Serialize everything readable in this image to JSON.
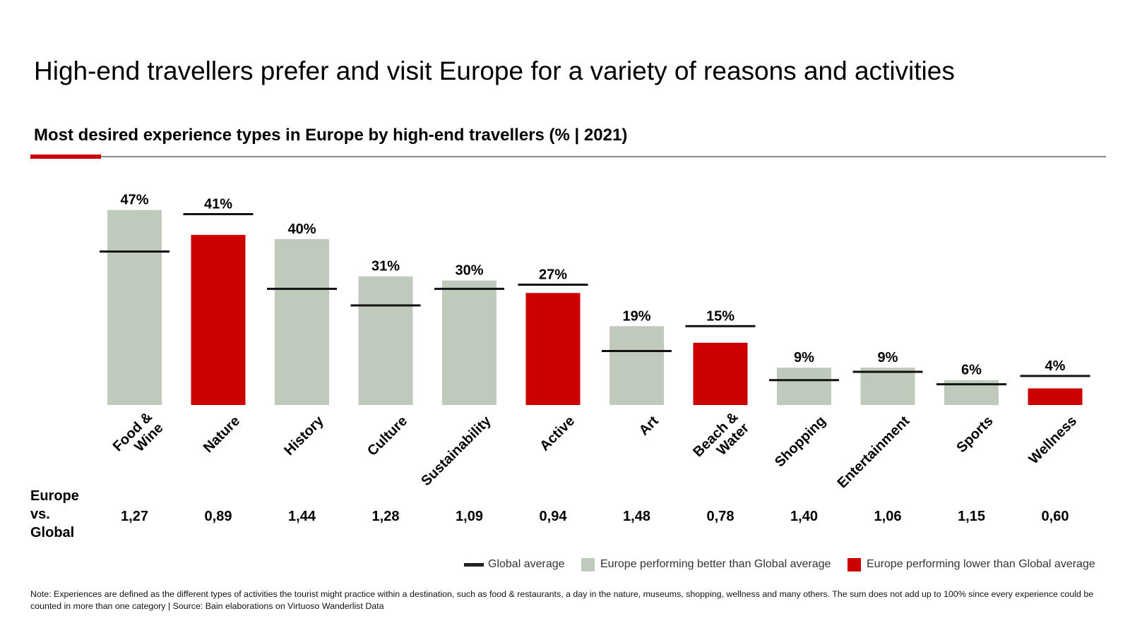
{
  "header": {
    "title": "High-end travellers prefer and visit Europe for a variety of reasons and activities",
    "subtitle": "Most desired experience types in Europe by high-end travellers (% | 2021)"
  },
  "colors": {
    "better": "#bfcabc",
    "lower": "#cc0000",
    "global_line": "#111111",
    "accent": "#cc0000"
  },
  "ratio_row": {
    "label": "Europe vs. Global"
  },
  "legend": {
    "global": "Global average",
    "better": "Europe performing better than Global average",
    "lower": "Europe performing lower than Global average"
  },
  "note": "Note: Experiences are defined as the different types of activities the tourist might practice within a destination, such as food & restaurants, a day in the nature, museums, shopping, wellness and many others. The sum does not add up to 100% since every experience could be counted in more than one category  | Source: Bain elaborations on Virtuoso Wanderlist Data",
  "chart_data": {
    "type": "bar",
    "title": "Most desired experience types in Europe by high-end travellers (% | 2021)",
    "categories": [
      [
        "Food &",
        "Wine"
      ],
      [
        "Nature"
      ],
      [
        "History"
      ],
      [
        "Culture"
      ],
      [
        "Sustainability"
      ],
      [
        "Active"
      ],
      [
        "Art"
      ],
      [
        "Beach &",
        "Water"
      ],
      [
        "Shopping"
      ],
      [
        "Entertainment"
      ],
      [
        "Sports"
      ],
      [
        "Wellness"
      ]
    ],
    "series": [
      {
        "name": "Europe",
        "values": [
          47,
          41,
          40,
          31,
          30,
          27,
          19,
          15,
          9,
          9,
          6,
          4
        ]
      },
      {
        "name": "Global average",
        "values": [
          37,
          46,
          28,
          24,
          28,
          29,
          13,
          19,
          6,
          8,
          5,
          7
        ]
      }
    ],
    "data_labels": [
      "47%",
      "41%",
      "40%",
      "31%",
      "30%",
      "27%",
      "19%",
      "15%",
      "9%",
      "9%",
      "6%",
      "4%"
    ],
    "status": [
      "better",
      "lower",
      "better",
      "better",
      "better",
      "lower",
      "better",
      "lower",
      "better",
      "better",
      "better",
      "lower"
    ],
    "ratios": [
      "1,27",
      "0,89",
      "1,44",
      "1,28",
      "1,09",
      "0,94",
      "1,48",
      "0,78",
      "1,40",
      "1,06",
      "1,15",
      "0,60"
    ],
    "ylim": [
      0,
      50
    ],
    "xlabel": "",
    "ylabel": "%",
    "grid": false,
    "legend_position": "bottom-right"
  }
}
